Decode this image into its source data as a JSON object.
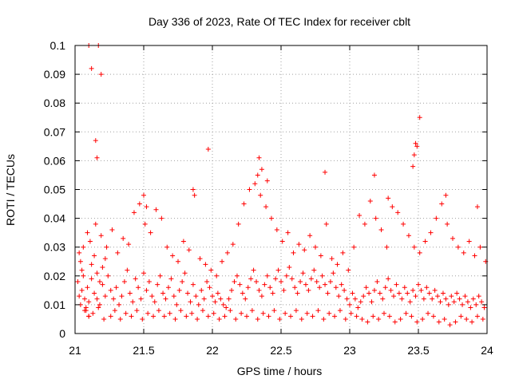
{
  "chart_data": {
    "type": "scatter",
    "title": "Day 336 of 2023, Rate Of TEC Index for receiver cblt",
    "xlabel": "GPS time / hours",
    "ylabel": "ROTI / TECUs",
    "xlim": [
      21,
      24
    ],
    "ylim": [
      0,
      0.1
    ],
    "x_ticks": [
      21,
      21.5,
      22,
      22.5,
      23,
      23.5,
      24
    ],
    "x_tick_labels": [
      "21",
      "21.5",
      "22",
      "22.5",
      "23",
      "23.5",
      "24"
    ],
    "y_ticks": [
      0,
      0.01,
      0.02,
      0.03,
      0.04,
      0.05,
      0.06,
      0.07,
      0.08,
      0.09,
      0.1
    ],
    "y_tick_labels": [
      "0",
      "0.01",
      "0.02",
      "0.03",
      "0.04",
      "0.05",
      "0.06",
      "0.07",
      "0.08",
      "0.09",
      "0.1"
    ],
    "grid": true,
    "marker": "+",
    "color": "#ff0000",
    "series": [
      {
        "name": "ROTI",
        "x": [
          21.02,
          21.03,
          21.04,
          21.05,
          21.06,
          21.07,
          21.08,
          21.09,
          21.1,
          21.12,
          21.14,
          21.16,
          21.18,
          21.2,
          21.22,
          21.03,
          21.04,
          21.05,
          21.06,
          21.08,
          21.1,
          21.12,
          21.14,
          21.16,
          21.18,
          21.2,
          21.22,
          21.24,
          21.26,
          21.28,
          21.3,
          21.32,
          21.34,
          21.36,
          21.38,
          21.4,
          21.42,
          21.44,
          21.46,
          21.48,
          21.5,
          21.52,
          21.54,
          21.56,
          21.58,
          21.6,
          21.62,
          21.64,
          21.66,
          21.68,
          21.7,
          21.72,
          21.74,
          21.76,
          21.78,
          21.8,
          21.82,
          21.84,
          21.86,
          21.88,
          21.9,
          21.92,
          21.94,
          21.96,
          21.98,
          22.0,
          22.02,
          22.04,
          22.06,
          22.08,
          22.1,
          22.12,
          22.14,
          22.16,
          22.18,
          22.2,
          22.22,
          22.24,
          22.26,
          22.28,
          22.3,
          22.32,
          22.34,
          22.36,
          22.38,
          22.4,
          22.42,
          22.44,
          22.46,
          22.48,
          22.5,
          22.52,
          22.54,
          22.56,
          22.58,
          22.6,
          22.62,
          22.64,
          22.66,
          22.68,
          22.7,
          22.72,
          22.74,
          22.76,
          22.78,
          22.8,
          22.82,
          22.84,
          22.86,
          22.88,
          22.9,
          22.92,
          22.94,
          22.96,
          22.98,
          23.0,
          23.02,
          23.04,
          23.06,
          23.08,
          23.1,
          23.12,
          23.14,
          23.16,
          23.18,
          23.2,
          23.22,
          23.24,
          23.26,
          23.28,
          23.3,
          23.32,
          23.34,
          23.36,
          23.38,
          23.4,
          23.42,
          23.44,
          23.46,
          23.48,
          23.5,
          23.52,
          23.54,
          23.56,
          23.58,
          23.6,
          23.62,
          23.64,
          23.66,
          23.68,
          23.7,
          23.72,
          23.74,
          23.76,
          23.78,
          23.8,
          23.82,
          23.84,
          23.86,
          23.88,
          23.9,
          23.92,
          23.94,
          23.96,
          23.98,
          21.07,
          21.1,
          21.13,
          21.17,
          21.21,
          21.26,
          21.29,
          21.33,
          21.37,
          21.41,
          21.45,
          21.49,
          21.53,
          21.57,
          21.61,
          21.65,
          21.69,
          21.73,
          21.77,
          21.81,
          21.85,
          21.89,
          21.93,
          21.97,
          22.01,
          22.05,
          22.09,
          22.13,
          22.17,
          22.21,
          22.25,
          22.29,
          22.33,
          22.37,
          22.41,
          22.45,
          22.49,
          22.53,
          22.57,
          22.61,
          22.65,
          22.69,
          22.73,
          22.77,
          22.81,
          22.85,
          22.89,
          22.93,
          22.97,
          23.01,
          23.05,
          23.09,
          23.13,
          23.17,
          23.21,
          23.25,
          23.29,
          23.33,
          23.37,
          23.41,
          23.45,
          23.49,
          23.53,
          23.57,
          23.61,
          23.65,
          23.69,
          23.73,
          23.77,
          23.81,
          23.85,
          23.89,
          23.93,
          23.97,
          21.09,
          21.11,
          21.15,
          21.19,
          21.23,
          21.27,
          21.31,
          21.35,
          21.39,
          21.43,
          21.47,
          21.51,
          21.55,
          21.59,
          21.63,
          21.67,
          21.71,
          21.75,
          21.79,
          21.83,
          21.87,
          21.91,
          21.95,
          21.99,
          22.03,
          22.07,
          22.11,
          22.15,
          22.19,
          22.23,
          22.27,
          22.31,
          22.35,
          22.39,
          22.43,
          22.47,
          22.51,
          22.55,
          22.59,
          22.63,
          22.67,
          22.71,
          22.75,
          22.79,
          22.83,
          22.87,
          22.91,
          22.95,
          22.99,
          23.03,
          23.07,
          23.11,
          23.15,
          23.19,
          23.23,
          23.27,
          23.31,
          23.35,
          23.39,
          23.43,
          23.47,
          23.51,
          23.55,
          23.59,
          23.63,
          23.67,
          23.71,
          23.75,
          23.79,
          23.83,
          23.87,
          23.91,
          23.95,
          23.99,
          21.1,
          21.17,
          21.19,
          21.12,
          21.15,
          21.16,
          21.97,
          22.33,
          22.34,
          22.36,
          22.82,
          23.18,
          23.49,
          23.51,
          23.48,
          23.47,
          23.46,
          21.5,
          21.52,
          21.86,
          22.4,
          23.28,
          23.7,
          23.93
        ],
        "y": [
          0.018,
          0.013,
          0.01,
          0.015,
          0.02,
          0.012,
          0.009,
          0.016,
          0.011,
          0.019,
          0.014,
          0.012,
          0.01,
          0.017,
          0.013,
          0.028,
          0.025,
          0.022,
          0.03,
          0.008,
          0.006,
          0.024,
          0.027,
          0.021,
          0.018,
          0.023,
          0.026,
          0.02,
          0.015,
          0.012,
          0.016,
          0.01,
          0.013,
          0.018,
          0.022,
          0.014,
          0.011,
          0.019,
          0.016,
          0.012,
          0.021,
          0.015,
          0.018,
          0.013,
          0.011,
          0.017,
          0.02,
          0.014,
          0.012,
          0.016,
          0.019,
          0.013,
          0.01,
          0.015,
          0.018,
          0.021,
          0.014,
          0.011,
          0.017,
          0.013,
          0.01,
          0.015,
          0.012,
          0.018,
          0.016,
          0.013,
          0.011,
          0.014,
          0.012,
          0.01,
          0.009,
          0.012,
          0.015,
          0.018,
          0.02,
          0.017,
          0.014,
          0.012,
          0.016,
          0.019,
          0.022,
          0.018,
          0.015,
          0.013,
          0.017,
          0.02,
          0.016,
          0.014,
          0.019,
          0.022,
          0.018,
          0.015,
          0.02,
          0.023,
          0.019,
          0.016,
          0.014,
          0.018,
          0.021,
          0.017,
          0.015,
          0.019,
          0.022,
          0.018,
          0.016,
          0.02,
          0.017,
          0.014,
          0.018,
          0.021,
          0.016,
          0.013,
          0.017,
          0.015,
          0.012,
          0.01,
          0.014,
          0.012,
          0.009,
          0.011,
          0.013,
          0.016,
          0.014,
          0.011,
          0.015,
          0.018,
          0.014,
          0.012,
          0.016,
          0.019,
          0.015,
          0.013,
          0.017,
          0.014,
          0.012,
          0.016,
          0.014,
          0.011,
          0.015,
          0.013,
          0.017,
          0.015,
          0.012,
          0.016,
          0.014,
          0.012,
          0.015,
          0.013,
          0.011,
          0.014,
          0.012,
          0.01,
          0.013,
          0.011,
          0.014,
          0.012,
          0.01,
          0.013,
          0.011,
          0.009,
          0.012,
          0.01,
          0.013,
          0.011,
          0.009,
          0.008,
          0.006,
          0.007,
          0.009,
          0.005,
          0.006,
          0.008,
          0.005,
          0.007,
          0.006,
          0.008,
          0.005,
          0.007,
          0.006,
          0.008,
          0.006,
          0.007,
          0.005,
          0.008,
          0.006,
          0.007,
          0.005,
          0.008,
          0.006,
          0.007,
          0.005,
          0.006,
          0.008,
          0.005,
          0.007,
          0.006,
          0.008,
          0.005,
          0.007,
          0.006,
          0.008,
          0.005,
          0.007,
          0.006,
          0.008,
          0.005,
          0.007,
          0.006,
          0.008,
          0.005,
          0.007,
          0.006,
          0.008,
          0.005,
          0.007,
          0.006,
          0.005,
          0.004,
          0.006,
          0.005,
          0.007,
          0.006,
          0.004,
          0.005,
          0.007,
          0.006,
          0.004,
          0.005,
          0.007,
          0.006,
          0.004,
          0.005,
          0.003,
          0.004,
          0.006,
          0.005,
          0.004,
          0.006,
          0.005,
          0.035,
          0.032,
          0.038,
          0.034,
          0.03,
          0.036,
          0.028,
          0.033,
          0.031,
          0.042,
          0.045,
          0.038,
          0.035,
          0.043,
          0.04,
          0.03,
          0.027,
          0.025,
          0.032,
          0.029,
          0.048,
          0.026,
          0.024,
          0.022,
          0.02,
          0.025,
          0.028,
          0.031,
          0.038,
          0.045,
          0.05,
          0.052,
          0.048,
          0.044,
          0.04,
          0.036,
          0.032,
          0.035,
          0.028,
          0.031,
          0.029,
          0.034,
          0.03,
          0.027,
          0.038,
          0.026,
          0.024,
          0.028,
          0.022,
          0.03,
          0.041,
          0.038,
          0.046,
          0.04,
          0.036,
          0.03,
          0.044,
          0.042,
          0.038,
          0.034,
          0.03,
          0.028,
          0.032,
          0.035,
          0.04,
          0.045,
          0.038,
          0.033,
          0.03,
          0.028,
          0.032,
          0.027,
          0.03,
          0.025,
          0.1,
          0.1,
          0.09,
          0.092,
          0.067,
          0.061,
          0.064,
          0.055,
          0.061,
          0.057,
          0.056,
          0.055,
          0.065,
          0.075,
          0.066,
          0.062,
          0.058,
          0.048,
          0.044,
          0.05,
          0.053,
          0.047,
          0.048,
          0.044
        ]
      }
    ]
  }
}
